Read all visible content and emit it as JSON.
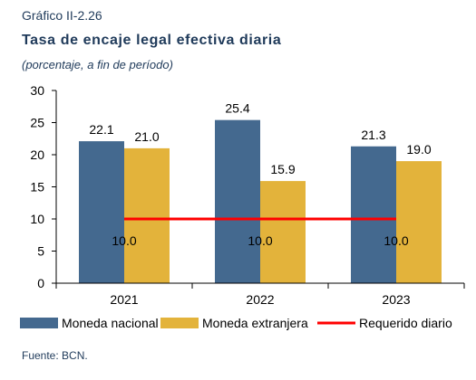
{
  "figure_label": "Gráfico II-2.26",
  "title": "Tasa de encaje legal efectiva diaria",
  "subtitle": "(porcentaje, a fin de período)",
  "source": "Fuente: BCN.",
  "colors": {
    "moneda_nacional": "#44698f",
    "moneda_extranjera": "#e3b33b",
    "requerido_diario": "#ff0000"
  },
  "chart_data": {
    "type": "bar",
    "categories": [
      "2021",
      "2022",
      "2023"
    ],
    "series": [
      {
        "name": "Moneda nacional",
        "kind": "bar",
        "values": [
          22.1,
          25.4,
          21.3
        ],
        "labels": [
          "22.1",
          "25.4",
          "21.3"
        ]
      },
      {
        "name": "Moneda extranjera",
        "kind": "bar",
        "values": [
          21.0,
          15.9,
          19.0
        ],
        "labels": [
          "21.0",
          "15.9",
          "19.0"
        ]
      },
      {
        "name": "Requerido diario",
        "kind": "line",
        "values": [
          10.0,
          10.0,
          10.0
        ],
        "labels": [
          "10.0",
          "10.0",
          "10.0"
        ]
      }
    ],
    "ylim": [
      0,
      30
    ],
    "yticks": [
      "0",
      "5",
      "10",
      "15",
      "20",
      "25",
      "30"
    ],
    "grid": false,
    "legend_position": "bottom"
  }
}
